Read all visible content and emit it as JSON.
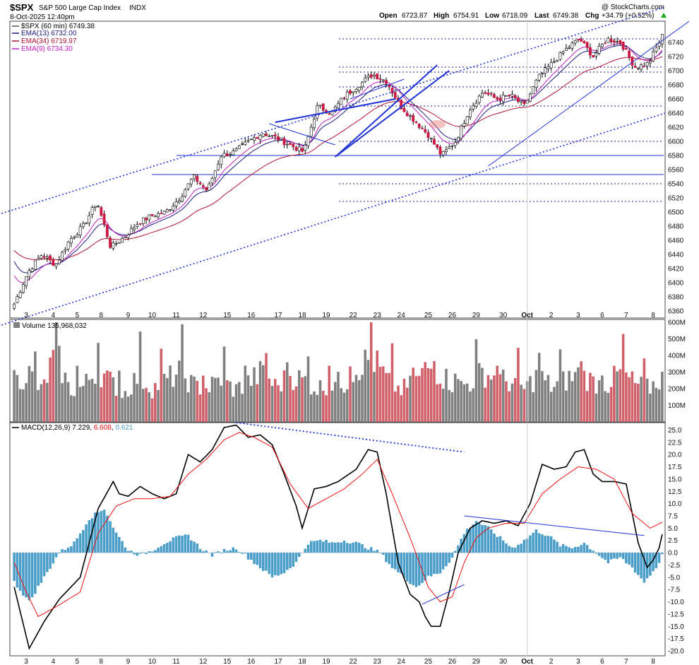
{
  "header": {
    "symbol": "$SPX",
    "name": "S&P 500 Large Cap Index",
    "exchange": "INDX",
    "date": "8-Oct-2025 12:40pm",
    "watermark": "@ StockCharts.com",
    "open_label": "Open",
    "open": "6723.87",
    "high_label": "High",
    "high": "6754.91",
    "low_label": "Low",
    "low": "6718.09",
    "last_label": "Last",
    "last": "6749.38",
    "chg_label": "Chg",
    "chg": "+34.79 (+0.52%)"
  },
  "legend": [
    {
      "text": "$SPX (60 min) 6749.38",
      "color": "#000000"
    },
    {
      "text": "EMA(13) 6732.00",
      "color": "#1a1a80"
    },
    {
      "text": "EMA(34) 6719.97",
      "color": "#b01030"
    },
    {
      "text": "EMA(9) 6734.30",
      "color": "#c020c0"
    }
  ],
  "volume_label": "Volume 135,968,032",
  "macd_label": {
    "prefix": "MACD(12,26,9)",
    "macd": "7.229",
    "signal": "6.608",
    "hist": "0.621"
  },
  "colors": {
    "up": "#ffffff",
    "down": "#cc1844",
    "vol_up": "#808080",
    "vol_down": "#d0606a",
    "hist": "#4a9ec8",
    "ema13": "#1a1a80",
    "ema34": "#b01030",
    "ema9": "#c020c0",
    "trend": "#1f33d6",
    "signal": "#ee1111"
  },
  "chart_data": [
    {
      "type": "candlestick",
      "title": "$SPX (60 min)",
      "ylim": [
        6350,
        6770
      ],
      "y_ticks": [
        6360,
        6380,
        6400,
        6420,
        6440,
        6460,
        6480,
        6500,
        6520,
        6540,
        6560,
        6580,
        6600,
        6620,
        6640,
        6660,
        6680,
        6700,
        6720,
        6740
      ],
      "x_labels": [
        "3",
        "4",
        "5",
        "8",
        "9",
        "10",
        "11",
        "12",
        "15",
        "16",
        "17",
        "18",
        "19",
        "22",
        "23",
        "24",
        "25",
        "26",
        "29",
        "30",
        "Oct",
        "2",
        "3",
        "6",
        "7",
        "8"
      ],
      "close_anchors": [
        6370,
        6415,
        6440,
        6425,
        6460,
        6480,
        6515,
        6450,
        6465,
        6485,
        6495,
        6500,
        6520,
        6550,
        6530,
        6580,
        6585,
        6600,
        6612,
        6605,
        6595,
        6585,
        6650,
        6640,
        6665,
        6680,
        6695,
        6685,
        6650,
        6630,
        6610,
        6580,
        6600,
        6645,
        6670,
        6660,
        6665,
        6650,
        6690,
        6710,
        6730,
        6745,
        6720,
        6745,
        6740,
        6705,
        6710,
        6749
      ],
      "horizontal_levels": [
        6580,
        6553
      ],
      "dotted_levels": [
        6745,
        6705,
        6698,
        6677,
        6650,
        6600,
        6540,
        6515
      ]
    },
    {
      "type": "bar",
      "title": "Volume",
      "ylim": [
        0,
        600
      ],
      "y_ticks_labels": [
        "100M",
        "200M",
        "300M",
        "400M",
        "500M",
        "600M"
      ],
      "y_ticks": [
        100,
        200,
        300,
        400,
        500,
        600
      ],
      "values_anchor_millions": [
        230,
        300,
        180,
        420,
        190,
        210,
        320,
        240,
        170,
        280,
        200,
        250,
        300,
        220,
        200,
        260,
        190,
        240,
        300,
        210,
        280,
        250,
        200,
        240,
        230,
        340,
        380,
        260,
        190,
        230,
        330,
        280,
        220,
        230,
        300,
        260,
        240,
        200,
        280,
        210,
        250,
        290,
        240,
        220,
        300,
        230,
        200,
        270
      ]
    },
    {
      "type": "line",
      "title": "MACD(12,26,9)",
      "ylim": [
        -21,
        26.5
      ],
      "y_ticks": [
        25,
        22.5,
        20,
        17.5,
        15,
        12.5,
        10,
        7.5,
        5,
        2.5,
        0,
        -2.5,
        -5,
        -7.5,
        -10,
        -12.5,
        -15,
        -17.5,
        -20
      ],
      "y_tick_labels": [
        "25.0",
        "22.5",
        "20.0",
        "17.5",
        "15.0",
        "12.5",
        "10.0",
        "7.5",
        "5.0",
        "2.5",
        "0.0",
        "-2.5",
        "-5.0",
        "-7.5",
        "-10.0",
        "-12.5",
        "-15.0",
        "-17.5",
        "-20.0"
      ],
      "series": [
        {
          "name": "MACD",
          "color": "#000000",
          "points": [
            [
              0,
              -7
            ],
            [
              5,
              -19.5
            ],
            [
              10,
              -14
            ],
            [
              15,
              -9.5
            ],
            [
              22,
              -5
            ],
            [
              28,
              9
            ],
            [
              33,
              14.5
            ],
            [
              35,
              12
            ],
            [
              38,
              11.5
            ],
            [
              42,
              13.5
            ],
            [
              46,
              12
            ],
            [
              50,
              11
            ],
            [
              54,
              12
            ],
            [
              58,
              20
            ],
            [
              62,
              18.5
            ],
            [
              66,
              21
            ],
            [
              70,
              25.5
            ],
            [
              74,
              26
            ],
            [
              78,
              23.5
            ],
            [
              82,
              24
            ],
            [
              86,
              22
            ],
            [
              90,
              16
            ],
            [
              94,
              9.5
            ],
            [
              96,
              5
            ],
            [
              100,
              13
            ],
            [
              104,
              13.5
            ],
            [
              108,
              14.5
            ],
            [
              114,
              17
            ],
            [
              118,
              21
            ],
            [
              121,
              20.5
            ],
            [
              124,
              12
            ],
            [
              128,
              -2
            ],
            [
              132,
              -8.5
            ],
            [
              135,
              -10
            ],
            [
              137,
              -13
            ],
            [
              139,
              -15
            ],
            [
              142,
              -15
            ],
            [
              145,
              -8
            ],
            [
              148,
              0
            ],
            [
              152,
              5
            ],
            [
              156,
              6.5
            ],
            [
              160,
              6
            ],
            [
              164,
              6.5
            ],
            [
              168,
              5.5
            ],
            [
              172,
              10
            ],
            [
              176,
              18
            ],
            [
              180,
              17
            ],
            [
              184,
              17.5
            ],
            [
              187,
              20.5
            ],
            [
              190,
              21
            ],
            [
              193,
              16
            ],
            [
              196,
              14.5
            ],
            [
              200,
              14.5
            ],
            [
              204,
              14
            ],
            [
              208,
              2
            ],
            [
              211,
              -3
            ],
            [
              213,
              -1.5
            ],
            [
              215,
              1
            ],
            [
              217,
              6.5
            ]
          ]
        },
        {
          "name": "Signal",
          "color": "#ee1111",
          "points": [
            [
              0,
              -2
            ],
            [
              4,
              -8
            ],
            [
              8,
              -13
            ],
            [
              14,
              -11
            ],
            [
              22,
              -8
            ],
            [
              28,
              4
            ],
            [
              34,
              9.5
            ],
            [
              40,
              11
            ],
            [
              46,
              11
            ],
            [
              52,
              11.5
            ],
            [
              58,
              16
            ],
            [
              64,
              19
            ],
            [
              70,
              23
            ],
            [
              75,
              24.5
            ],
            [
              80,
              23.5
            ],
            [
              86,
              21.5
            ],
            [
              92,
              14
            ],
            [
              98,
              9
            ],
            [
              104,
              11
            ],
            [
              110,
              13
            ],
            [
              116,
              16
            ],
            [
              121,
              19
            ],
            [
              126,
              12
            ],
            [
              132,
              3
            ],
            [
              138,
              -7
            ],
            [
              142,
              -10
            ],
            [
              146,
              -9
            ],
            [
              150,
              -2
            ],
            [
              154,
              3
            ],
            [
              158,
              5
            ],
            [
              164,
              6
            ],
            [
              170,
              6
            ],
            [
              176,
              12
            ],
            [
              182,
              15
            ],
            [
              188,
              17.5
            ],
            [
              194,
              17
            ],
            [
              200,
              15
            ],
            [
              206,
              8
            ],
            [
              212,
              5
            ],
            [
              217,
              6.5
            ]
          ]
        }
      ],
      "histogram_anchors": [
        [
          0,
          -6
        ],
        [
          5,
          -10
        ],
        [
          10,
          -5
        ],
        [
          15,
          0
        ],
        [
          20,
          2
        ],
        [
          25,
          7
        ],
        [
          30,
          9
        ],
        [
          34,
          4
        ],
        [
          38,
          0.5
        ],
        [
          42,
          -0.5
        ],
        [
          46,
          0.5
        ],
        [
          50,
          2
        ],
        [
          54,
          3
        ],
        [
          58,
          3.5
        ],
        [
          62,
          1
        ],
        [
          66,
          -0.5
        ],
        [
          70,
          0.5
        ],
        [
          74,
          1
        ],
        [
          78,
          -1
        ],
        [
          82,
          -3
        ],
        [
          86,
          -5
        ],
        [
          90,
          -4
        ],
        [
          94,
          -2
        ],
        [
          98,
          2
        ],
        [
          102,
          2.5
        ],
        [
          106,
          2
        ],
        [
          110,
          2.5
        ],
        [
          114,
          2
        ],
        [
          118,
          1
        ],
        [
          122,
          0
        ],
        [
          126,
          -3
        ],
        [
          130,
          -5
        ],
        [
          134,
          -7
        ],
        [
          138,
          -5
        ],
        [
          142,
          -4
        ],
        [
          146,
          -1
        ],
        [
          150,
          4
        ],
        [
          154,
          6.5
        ],
        [
          158,
          5
        ],
        [
          162,
          3
        ],
        [
          166,
          1
        ],
        [
          170,
          2.5
        ],
        [
          174,
          4.5
        ],
        [
          178,
          3.5
        ],
        [
          182,
          1.5
        ],
        [
          186,
          1
        ],
        [
          190,
          2
        ],
        [
          194,
          0
        ],
        [
          198,
          -2
        ],
        [
          202,
          -1
        ],
        [
          206,
          -3
        ],
        [
          210,
          -6
        ],
        [
          214,
          -3
        ],
        [
          217,
          0.6
        ]
      ]
    }
  ]
}
